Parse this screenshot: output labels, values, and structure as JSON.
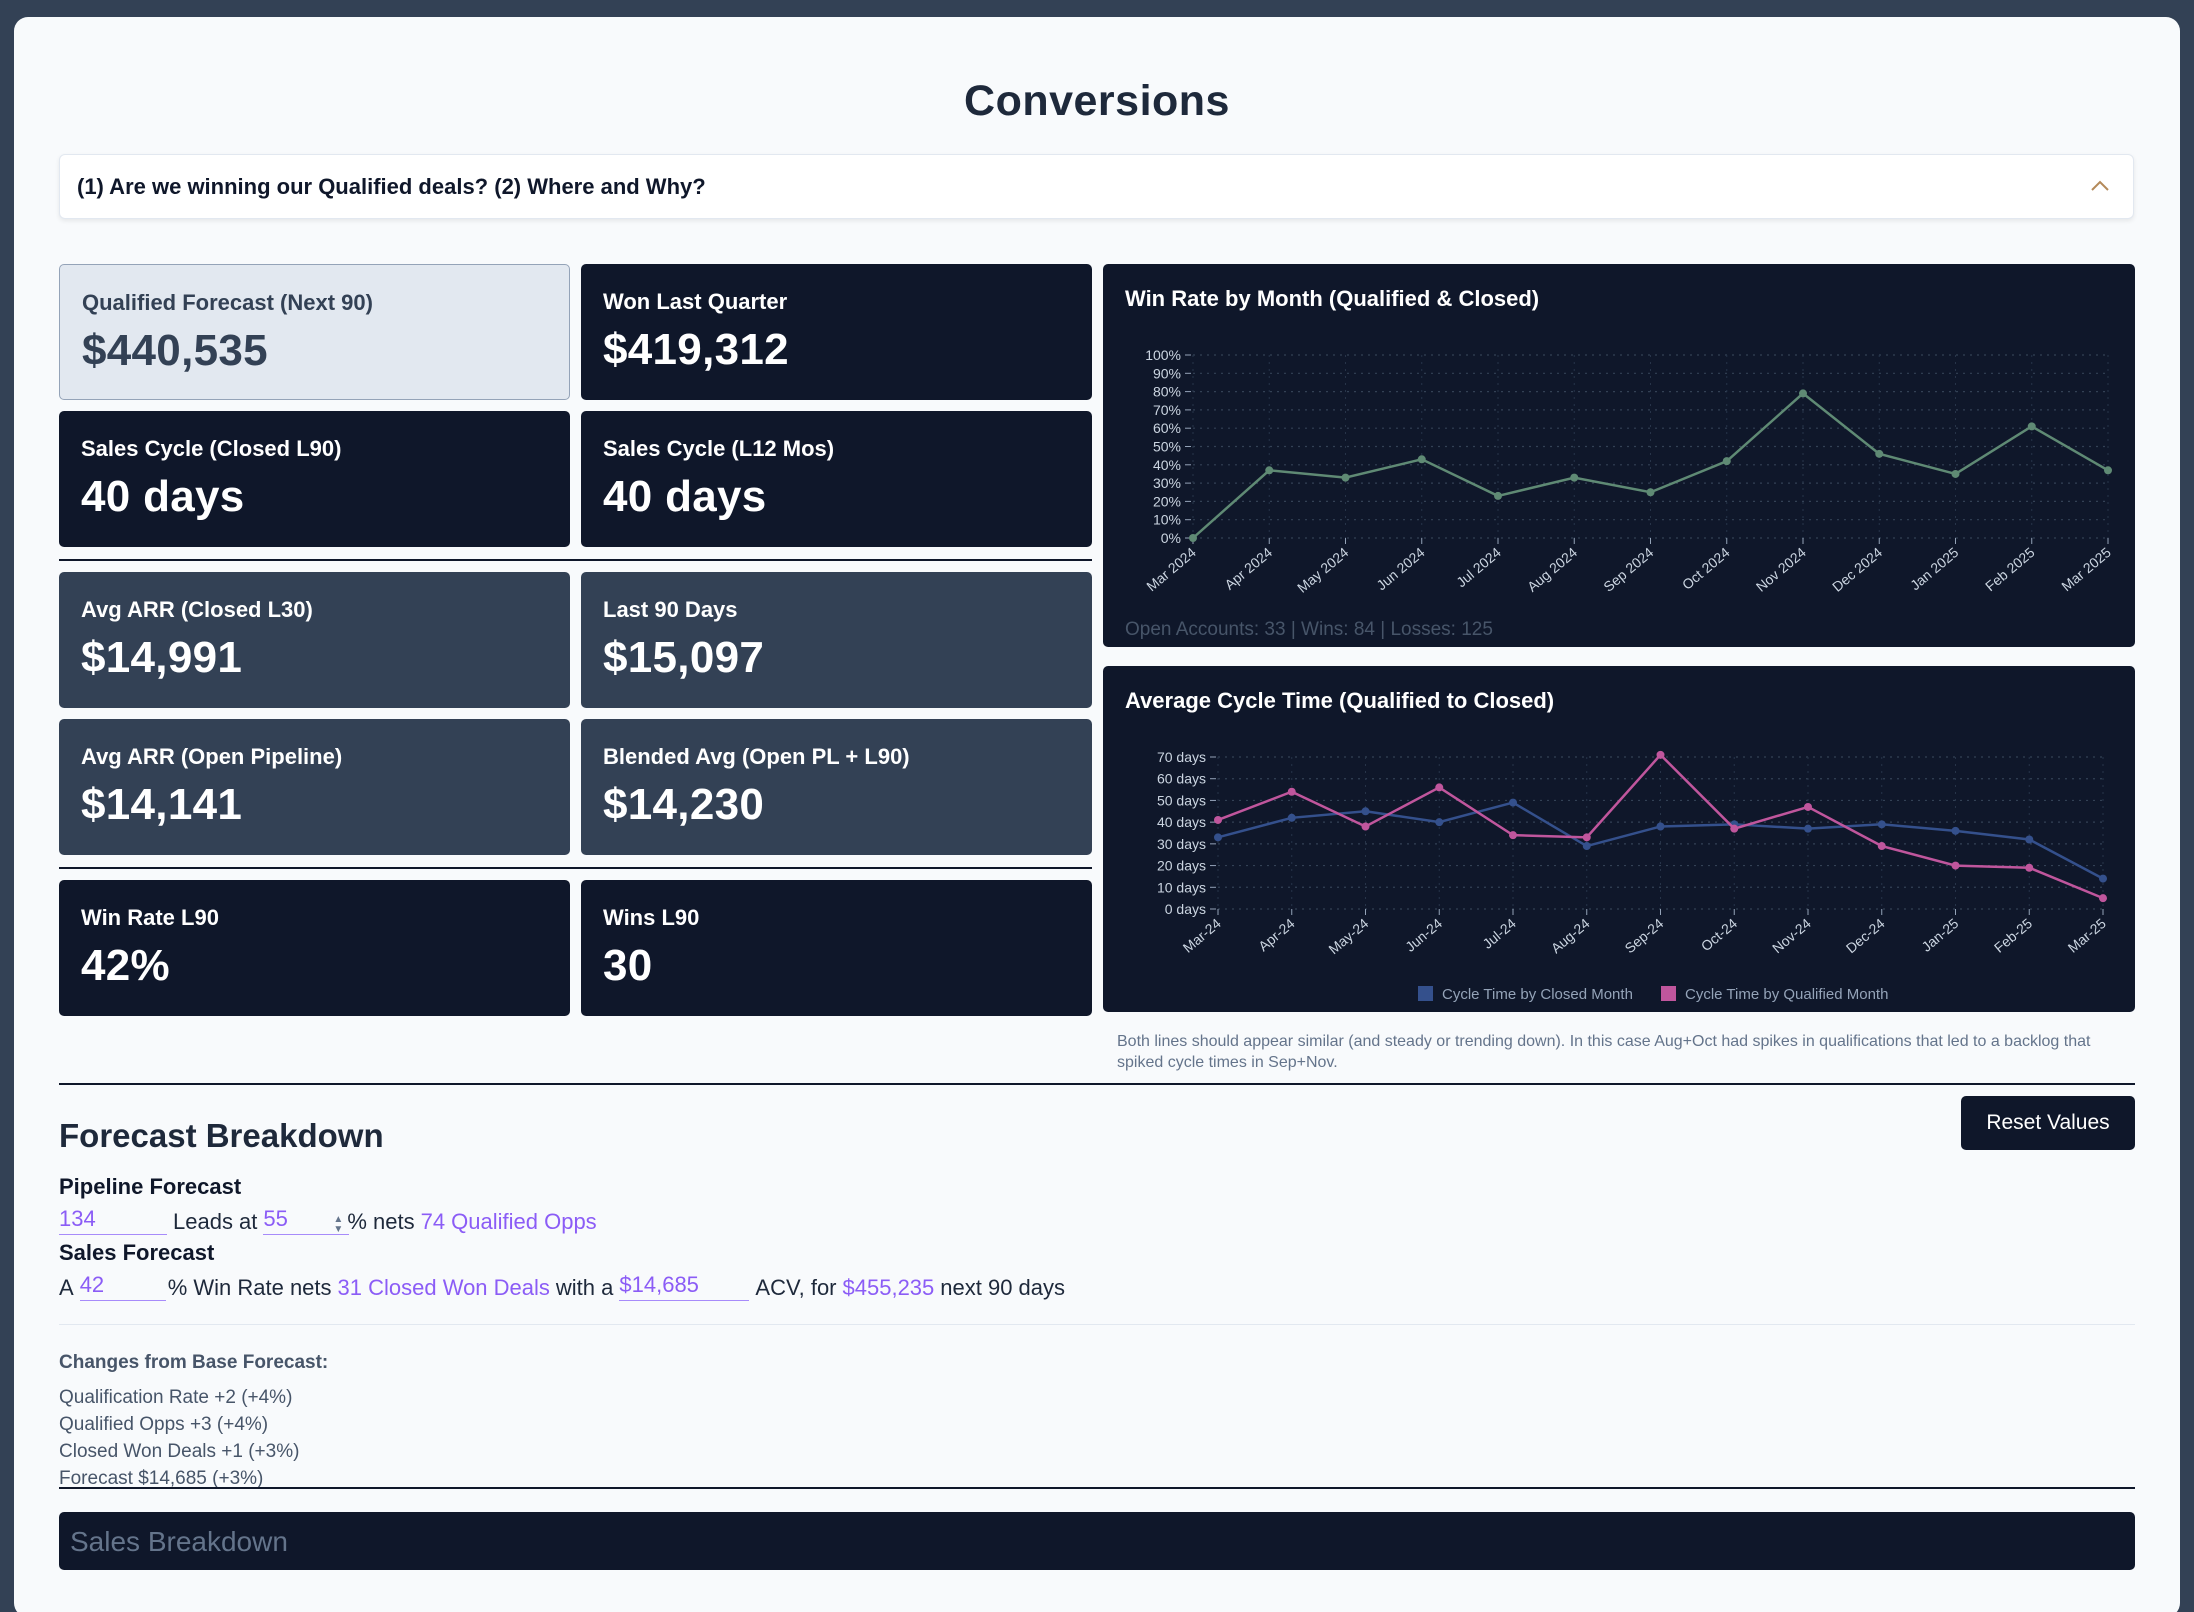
{
  "page": {
    "title": "Conversions"
  },
  "accordion": {
    "question": "(1) Are we winning our Qualified deals? (2) Where and Why?"
  },
  "kpis": [
    {
      "label": "Qualified Forecast (Next 90)",
      "value": "$440,535"
    },
    {
      "label": "Won Last Quarter",
      "value": "$419,312"
    },
    {
      "label": "Sales Cycle (Closed L90)",
      "value": "40 days"
    },
    {
      "label": "Sales Cycle (L12 Mos)",
      "value": "40 days"
    },
    {
      "label": "Avg ARR (Closed L30)",
      "value": "$14,991"
    },
    {
      "label": "Last 90 Days",
      "value": "$15,097"
    },
    {
      "label": "Avg ARR (Open Pipeline)",
      "value": "$14,141"
    },
    {
      "label": "Blended Avg (Open PL + L90)",
      "value": "$14,230"
    },
    {
      "label": "Win Rate L90",
      "value": "42%"
    },
    {
      "label": "Wins L90",
      "value": "30"
    }
  ],
  "chart_data": [
    {
      "type": "line",
      "title": "Win Rate by Month (Qualified & Closed)",
      "categories": [
        "Mar 2024",
        "Apr 2024",
        "May 2024",
        "Jun 2024",
        "Jul 2024",
        "Aug 2024",
        "Sep 2024",
        "Oct 2024",
        "Nov 2024",
        "Dec 2024",
        "Jan 2025",
        "Feb 2025",
        "Mar 2025"
      ],
      "series": [
        {
          "values": [
            0,
            37,
            33,
            43,
            23,
            33,
            25,
            42,
            79,
            46,
            35,
            61,
            37
          ]
        }
      ],
      "yticks": [
        "0%",
        "10%",
        "20%",
        "30%",
        "40%",
        "50%",
        "60%",
        "70%",
        "80%",
        "90%",
        "100%"
      ],
      "ylim": [
        0,
        100
      ],
      "color": "#5f8a74",
      "footer": "Open Accounts: 33 | Wins: 84 | Losses: 125",
      "grid": true
    },
    {
      "type": "line",
      "title": "Average Cycle Time (Qualified to Closed)",
      "categories": [
        "Mar-24",
        "Apr-24",
        "May-24",
        "Jun-24",
        "Jul-24",
        "Aug-24",
        "Sep-24",
        "Oct-24",
        "Nov-24",
        "Dec-24",
        "Jan-25",
        "Feb-25",
        "Mar-25"
      ],
      "series": [
        {
          "name": "Cycle Time by Closed Month",
          "color": "#34508c",
          "values": [
            33,
            42,
            45,
            40,
            49,
            29,
            38,
            39,
            37,
            39,
            36,
            32,
            14
          ]
        },
        {
          "name": "Cycle Time by Qualified Month",
          "color": "#c0569d",
          "values": [
            41,
            54,
            38,
            56,
            34,
            33,
            71,
            37,
            47,
            29,
            20,
            19,
            5
          ]
        }
      ],
      "yticks": [
        "0 days",
        "10 days",
        "20 days",
        "30 days",
        "40 days",
        "50 days",
        "60 days",
        "70 days"
      ],
      "ylim": [
        0,
        70
      ],
      "legend": "bottom",
      "grid": true
    }
  ],
  "chart_note": "Both lines should appear similar (and steady or trending down). In this case Aug+Oct had spikes in qualifications that led to a backlog that spiked cycle times in Sep+Nov.",
  "forecast": {
    "title": "Forecast Breakdown",
    "reset_label": "Reset Values",
    "pipeline": {
      "title": "Pipeline Forecast",
      "leads": "134",
      "leads_text": "Leads at",
      "rate": "55",
      "pct_text": "% nets",
      "qualified": "74 Qualified Opps"
    },
    "sales": {
      "title": "Sales Forecast",
      "prefix": "A",
      "win_rate": "42",
      "win_text": "% Win Rate nets",
      "closed_won": "31 Closed Won Deals",
      "with_text": "with a",
      "acv": "$14,685",
      "acv_text": "ACV, for",
      "total": "$455,235",
      "next_text": "next 90 days"
    },
    "changes": {
      "title": "Changes from Base Forecast:",
      "items": [
        "Qualification Rate +2 (+4%)",
        "Qualified Opps +3 (+4%)",
        "Closed Won Deals +1 (+3%)",
        "Forecast $14,685 (+3%)"
      ]
    }
  },
  "sales_breakdown": {
    "label": "Sales Breakdown"
  }
}
